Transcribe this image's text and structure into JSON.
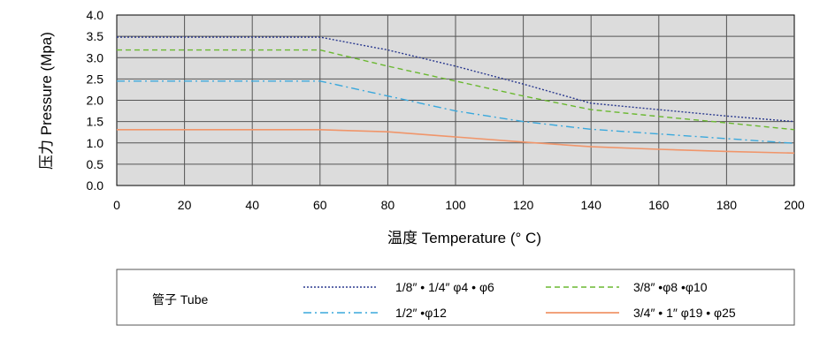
{
  "chart_data": {
    "type": "line",
    "title": "",
    "xlabel": "温度 Temperature (° C)",
    "ylabel": "压力 Pressure (Mpa)",
    "xlim": [
      0,
      200
    ],
    "ylim": [
      0,
      4.0
    ],
    "xticks": [
      0,
      20,
      40,
      60,
      80,
      100,
      120,
      140,
      160,
      180,
      200
    ],
    "yticks": [
      "0.0",
      "0.5",
      "1.0",
      "1.5",
      "2.0",
      "2.5",
      "3.0",
      "3.5",
      "4.0"
    ],
    "grid": true,
    "legend_title": "管子 Tube",
    "legend_position": "bottom",
    "series": [
      {
        "name": "1/8″ • 1/4″ φ4 • φ6",
        "style": "dotted",
        "color": "#2b3a8f",
        "x": [
          0,
          60,
          80,
          100,
          120,
          140,
          160,
          180,
          200
        ],
        "y": [
          3.48,
          3.48,
          3.18,
          2.8,
          2.38,
          1.93,
          1.78,
          1.63,
          1.5
        ]
      },
      {
        "name": "3/8″ •φ8 •φ10",
        "style": "dashed",
        "color": "#6ab830",
        "x": [
          0,
          60,
          80,
          100,
          120,
          140,
          160,
          180,
          200
        ],
        "y": [
          3.18,
          3.18,
          2.8,
          2.45,
          2.1,
          1.78,
          1.62,
          1.47,
          1.31
        ]
      },
      {
        "name": "1/2″ •φ12",
        "style": "dashdot",
        "color": "#3aa8dc",
        "x": [
          0,
          60,
          80,
          100,
          120,
          140,
          160,
          180,
          200
        ],
        "y": [
          2.45,
          2.45,
          2.1,
          1.75,
          1.5,
          1.32,
          1.21,
          1.1,
          0.99
        ]
      },
      {
        "name": "3/4″ • 1″ φ19 • φ25",
        "style": "solid",
        "color": "#f0956a",
        "x": [
          0,
          60,
          80,
          100,
          120,
          140,
          160,
          180,
          200
        ],
        "y": [
          1.31,
          1.31,
          1.26,
          1.14,
          1.02,
          0.91,
          0.85,
          0.8,
          0.76
        ]
      }
    ]
  }
}
